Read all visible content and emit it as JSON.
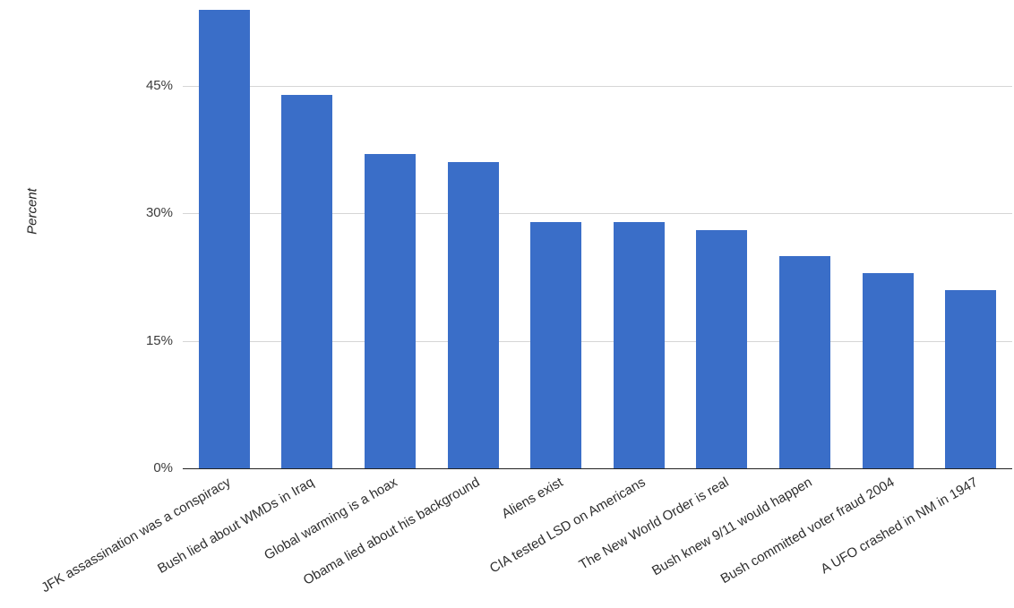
{
  "chart_data": {
    "type": "bar",
    "title": "",
    "xlabel": "",
    "ylabel": "Percent",
    "categories": [
      "JFK assassination was a conspiracy",
      "Bush lied about WMDs in Iraq",
      "Global warming is a hoax",
      "Obama lied about his background",
      "Aliens exist",
      "CIA tested LSD on Americans",
      "The New World Order is real",
      "Bush knew 9/11 would happen",
      "Bush committed voter fraud 2004",
      "A UFO crashed in NM in 1947"
    ],
    "values": [
      54,
      44,
      37,
      36,
      29,
      29,
      28,
      25,
      23,
      21
    ],
    "yticks": [
      {
        "label": "0%",
        "value": 0
      },
      {
        "label": "15%",
        "value": 15
      },
      {
        "label": "30%",
        "value": 30
      },
      {
        "label": "45%",
        "value": 45
      }
    ],
    "ylim": [
      0,
      55.1
    ],
    "grid": true,
    "legend_position": "none",
    "x_label_rotation_deg": -30,
    "colors": {
      "bar": "#3A6EC8",
      "gridline": "#D6D6D6",
      "axis_line": "#222222",
      "tick_text": "#3C3C3C",
      "category_text": "#2E2E2E"
    }
  }
}
